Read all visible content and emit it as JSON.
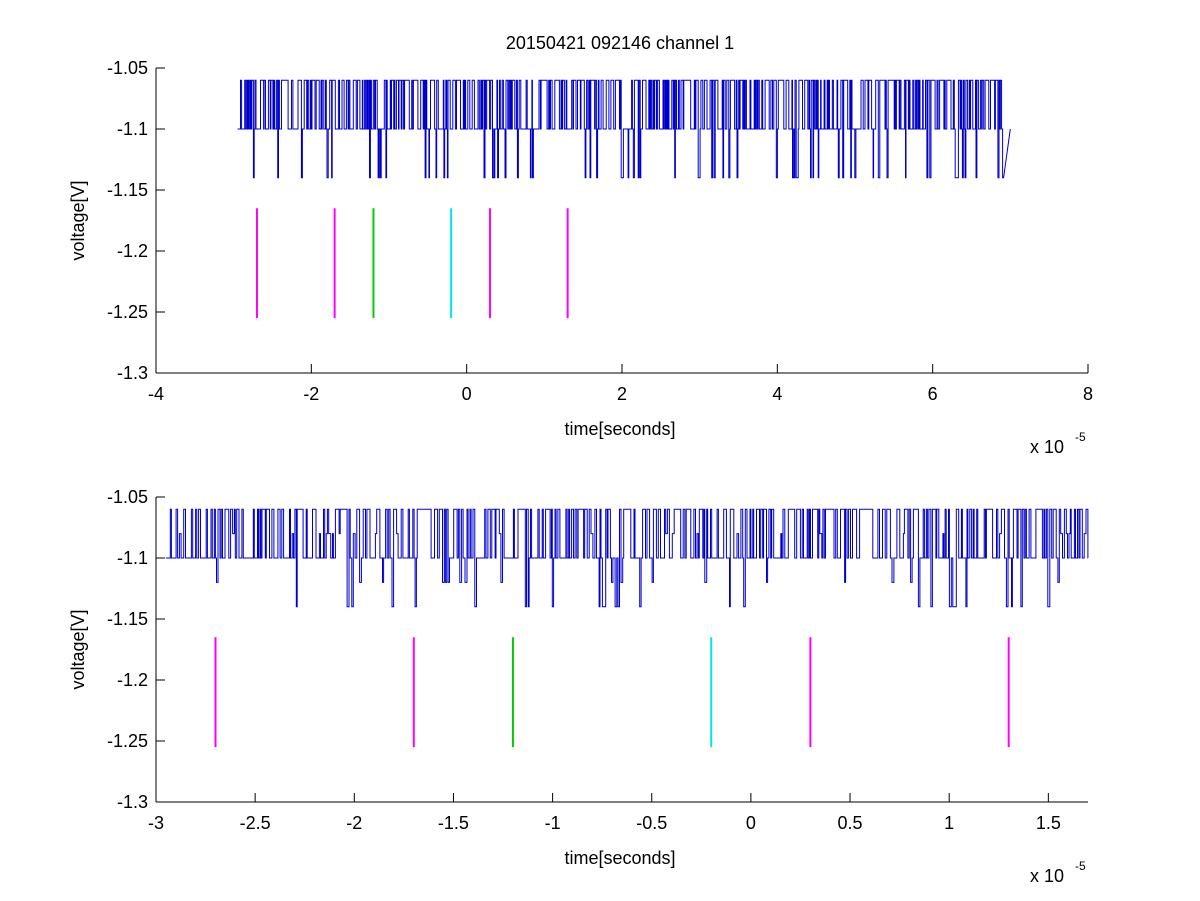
{
  "figure": {
    "title": "20150421 092146 channel 1"
  },
  "chart_data": [
    {
      "type": "line",
      "title": "20150421 092146 channel 1",
      "xlabel": "time[seconds]",
      "ylabel": "voltage[V]",
      "x_exponent_base": "x 10",
      "x_exponent_power": "-5",
      "xlim": [
        -4,
        8
      ],
      "ylim": [
        -1.3,
        -1.05
      ],
      "xticks": [
        -4,
        -2,
        0,
        2,
        4,
        6,
        8
      ],
      "xtick_labels": [
        "-4",
        "-2",
        "0",
        "2",
        "4",
        "6",
        "8"
      ],
      "yticks": [
        -1.3,
        -1.25,
        -1.2,
        -1.15,
        -1.1,
        -1.05
      ],
      "ytick_labels": [
        "-1.3",
        "-1.25",
        "-1.2",
        "-1.15",
        "-1.1",
        "-1.05"
      ],
      "grid": false,
      "series": [
        {
          "kind": "step-trace",
          "color": "#0000cc",
          "x_start": -2.95,
          "x_end": 7.0,
          "levels": [
            -1.06,
            -1.1,
            -1.14
          ],
          "baseline": -1.1
        }
      ],
      "markers": [
        {
          "x": -2.7,
          "y_bottom": -1.255,
          "y_top": -1.165,
          "color": "#ff00ff"
        },
        {
          "x": -1.7,
          "y_bottom": -1.255,
          "y_top": -1.165,
          "color": "#ff00ff"
        },
        {
          "x": -1.2,
          "y_bottom": -1.255,
          "y_top": -1.165,
          "color": "#00cc00"
        },
        {
          "x": -0.2,
          "y_bottom": -1.255,
          "y_top": -1.165,
          "color": "#00e5e5"
        },
        {
          "x": 0.3,
          "y_bottom": -1.255,
          "y_top": -1.165,
          "color": "#ff00ff"
        },
        {
          "x": 1.3,
          "y_bottom": -1.255,
          "y_top": -1.165,
          "color": "#ff00ff"
        }
      ]
    },
    {
      "type": "line",
      "title": "",
      "xlabel": "time[seconds]",
      "ylabel": "voltage[V]",
      "x_exponent_base": "x 10",
      "x_exponent_power": "-5",
      "xlim": [
        -3.0,
        1.7
      ],
      "ylim": [
        -1.3,
        -1.05
      ],
      "xticks": [
        -3,
        -2.5,
        -2,
        -1.5,
        -1,
        -0.5,
        0,
        0.5,
        1,
        1.5
      ],
      "xtick_labels": [
        "-3",
        "-2.5",
        "-2",
        "-1.5",
        "-1",
        "-0.5",
        "0",
        "0.5",
        "1",
        "1.5"
      ],
      "yticks": [
        -1.3,
        -1.25,
        -1.2,
        -1.15,
        -1.1,
        -1.05
      ],
      "ytick_labels": [
        "-1.3",
        "-1.25",
        "-1.2",
        "-1.15",
        "-1.1",
        "-1.05"
      ],
      "grid": false,
      "series": [
        {
          "kind": "step-trace",
          "color": "#0000cc",
          "x_start": -2.95,
          "x_end": 1.7,
          "levels": [
            -1.06,
            -1.08,
            -1.1,
            -1.12,
            -1.14
          ],
          "baseline": -1.1
        }
      ],
      "markers": [
        {
          "x": -2.7,
          "y_bottom": -1.255,
          "y_top": -1.165,
          "color": "#ff00ff"
        },
        {
          "x": -1.7,
          "y_bottom": -1.255,
          "y_top": -1.165,
          "color": "#ff00ff"
        },
        {
          "x": -1.2,
          "y_bottom": -1.255,
          "y_top": -1.165,
          "color": "#00cc00"
        },
        {
          "x": -0.2,
          "y_bottom": -1.255,
          "y_top": -1.165,
          "color": "#00e5e5"
        },
        {
          "x": 0.3,
          "y_bottom": -1.255,
          "y_top": -1.165,
          "color": "#ff00ff"
        },
        {
          "x": 1.3,
          "y_bottom": -1.255,
          "y_top": -1.165,
          "color": "#ff00ff"
        }
      ]
    }
  ]
}
